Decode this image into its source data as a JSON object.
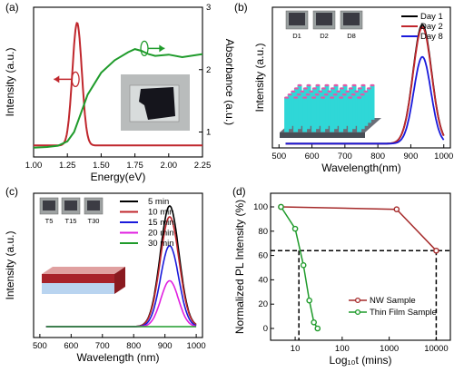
{
  "colors": {
    "red": "#c0272d",
    "green": "#1f9b2b",
    "black": "#000000",
    "blue": "#1a1adb",
    "magenta": "#e020e0",
    "darkred": "#a52a2a"
  },
  "chart_data": [
    {
      "panel": "(a)",
      "type": "line",
      "xlabel": "Energy(eV)",
      "ylabel_left": "Intensity (a.u.)",
      "ylabel_right": "Absorbance (a.u.)",
      "xlim": [
        1.0,
        2.25
      ],
      "xticks": [
        "1.00",
        "1.25",
        "1.50",
        "1.75",
        "2.00",
        "2.25"
      ],
      "ylim_right": [
        0.6,
        3.0
      ],
      "yticks_right": [
        "1",
        "2",
        "3"
      ],
      "series": [
        {
          "axis": "left",
          "x": [
            1.0,
            1.2,
            1.25,
            1.28,
            1.3,
            1.32,
            1.34,
            1.36,
            1.38,
            1.4,
            1.43,
            1.46,
            1.5,
            1.6,
            2.25
          ],
          "values": [
            0.02,
            0.02,
            0.06,
            0.35,
            0.75,
            1.0,
            0.92,
            0.6,
            0.3,
            0.12,
            0.04,
            0.02,
            0.01,
            0.01,
            0.01
          ]
        },
        {
          "axis": "right",
          "x": [
            1.0,
            1.1,
            1.18,
            1.25,
            1.3,
            1.35,
            1.4,
            1.5,
            1.6,
            1.7,
            1.75,
            1.8,
            1.85,
            1.9,
            2.0,
            2.1,
            2.25
          ],
          "values": [
            0.75,
            0.76,
            0.78,
            0.85,
            1.0,
            1.3,
            1.6,
            1.95,
            2.15,
            2.28,
            2.33,
            2.3,
            2.25,
            2.22,
            2.24,
            2.2,
            2.25
          ]
        }
      ]
    },
    {
      "panel": "(b)",
      "type": "line",
      "xlabel": "Wavelength(nm)",
      "ylabel": "Intensity (a.u.)",
      "xlim": [
        480,
        1020
      ],
      "xticks": [
        "500",
        "600",
        "700",
        "800",
        "900",
        "1000"
      ],
      "legend": [
        "Day 1",
        "Day 2",
        "Day 8"
      ],
      "inset_labels": [
        "D1",
        "D2",
        "D8"
      ],
      "series": [
        {
          "name": "Day 1",
          "peak": 935,
          "width": 28,
          "amp": 1.0
        },
        {
          "name": "Day 2",
          "peak": 935,
          "width": 28,
          "amp": 0.98
        },
        {
          "name": "Day 8",
          "peak": 935,
          "width": 26,
          "amp": 0.73
        }
      ]
    },
    {
      "panel": "(c)",
      "type": "line",
      "xlabel": "Wavelength (nm)",
      "ylabel": "Intensity (a.u.)",
      "xlim": [
        480,
        1020
      ],
      "xticks": [
        "500",
        "600",
        "700",
        "800",
        "900",
        "1000"
      ],
      "legend": [
        "5 min",
        "10 min",
        "15 min",
        "20 min",
        "30 min"
      ],
      "inset_labels": [
        "T5",
        "T15",
        "T30"
      ],
      "series": [
        {
          "name": "5 min",
          "peak": 915,
          "width": 30,
          "amp": 1.0
        },
        {
          "name": "10 min",
          "peak": 915,
          "width": 30,
          "amp": 0.91
        },
        {
          "name": "15 min",
          "peak": 915,
          "width": 29,
          "amp": 0.67
        },
        {
          "name": "20 min",
          "peak": 915,
          "width": 28,
          "amp": 0.38
        },
        {
          "name": "30 min",
          "peak": 915,
          "width": 28,
          "amp": 0.0
        }
      ]
    },
    {
      "panel": "(d)",
      "type": "line",
      "xlabel": "Log₁₀t (mins)",
      "ylabel": "Normalized PL Intensity (%)",
      "xscale": "log",
      "xlim": [
        3,
        20000
      ],
      "xticks": [
        "10",
        "100",
        "1000",
        "10000"
      ],
      "ylim": [
        0,
        100
      ],
      "yticks": [
        "0",
        "20",
        "40",
        "60",
        "80",
        "100"
      ],
      "legend": [
        "NW Sample",
        "Thin Film Sample"
      ],
      "series": [
        {
          "name": "NW Sample",
          "x": [
            5,
            1440,
            10000
          ],
          "values": [
            100,
            98,
            64
          ]
        },
        {
          "name": "Thin Film Sample",
          "x": [
            5,
            10,
            15,
            20,
            25,
            30
          ],
          "values": [
            100,
            82,
            52,
            23,
            5,
            0
          ]
        }
      ],
      "hline": 64,
      "vlines": [
        12,
        10000
      ]
    }
  ]
}
